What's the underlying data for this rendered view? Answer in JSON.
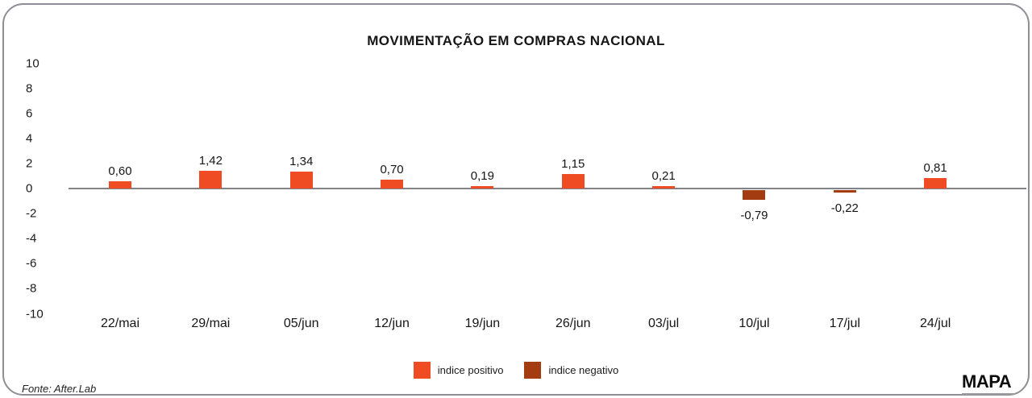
{
  "chart_data": {
    "type": "bar",
    "title": "MOVIMENTAÇÃO EM COMPRAS NACIONAL",
    "categories": [
      "22/mai",
      "29/mai",
      "05/jun",
      "12/jun",
      "19/jun",
      "26/jun",
      "03/jul",
      "10/jul",
      "17/jul",
      "24/jul"
    ],
    "values": [
      0.6,
      1.42,
      1.34,
      0.7,
      0.19,
      1.15,
      0.21,
      -0.79,
      -0.22,
      0.81
    ],
    "value_labels": [
      "0,60",
      "1,42",
      "1,34",
      "0,70",
      "0,19",
      "1,15",
      "0,21",
      "-0,79",
      "-0,22",
      "0,81"
    ],
    "xlabel": "",
    "ylabel": "",
    "ylim": [
      -10,
      10
    ],
    "yticks": [
      10,
      8,
      6,
      4,
      2,
      0,
      -2,
      -4,
      -6,
      -8,
      -10
    ],
    "grid": false,
    "legend_position": "bottom",
    "colors": {
      "positive": "#ef4c23",
      "negative": "#a43c12",
      "zero_line": "#82828a"
    }
  },
  "legend": {
    "items": [
      {
        "label": "indice positivo",
        "color": "#ef4c23"
      },
      {
        "label": "indice negativo",
        "color": "#a43c12"
      }
    ]
  },
  "footer": {
    "source": "Fonte: After.Lab",
    "brand": "MAPA"
  }
}
